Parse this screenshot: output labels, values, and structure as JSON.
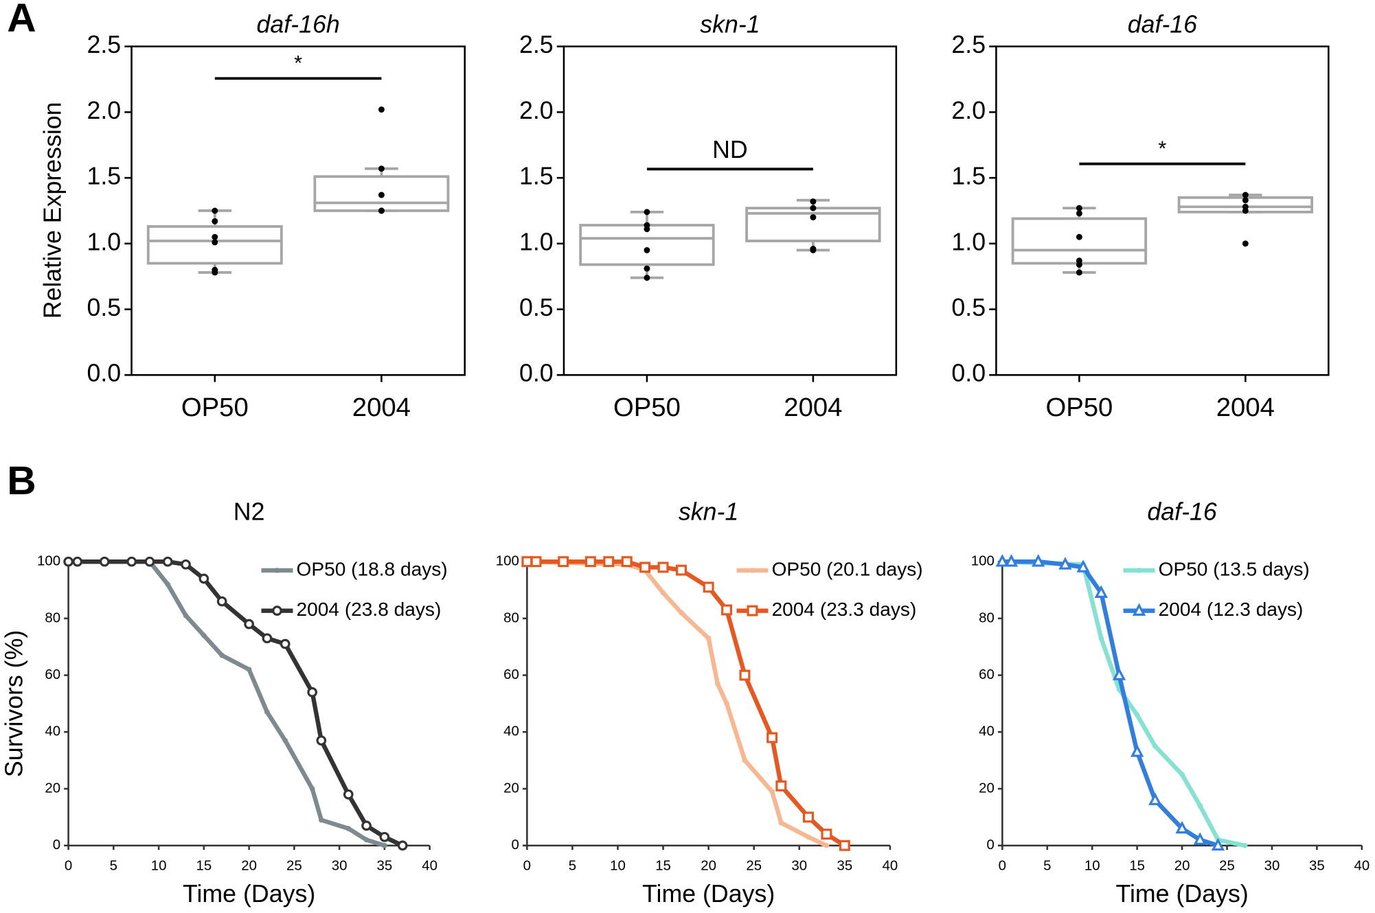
{
  "panel_labels": [
    "A",
    "B"
  ],
  "chart_data": [
    {
      "type": "box",
      "title": "daf-16h",
      "ylabel": "Relative Expression",
      "categories": [
        "OP50",
        "2004"
      ],
      "color": "#a6a6a6",
      "annotation": "*",
      "ylim": [
        0,
        2.5
      ],
      "yticks": [
        {
          "value": 0,
          "label": "0.0"
        },
        0.5,
        {
          "value": 1,
          "label": "1.0"
        },
        1.5,
        {
          "value": 2,
          "label": "2.0"
        },
        2.5
      ],
      "boxes": [
        {
          "whislo": 0.78,
          "q1": 0.85,
          "med": 1.02,
          "q3": 1.13,
          "whishi": 1.25,
          "points": [
            1.25,
            1.17,
            1.05,
            1.01,
            0.8,
            0.78
          ]
        },
        {
          "whislo": 1.25,
          "q1": 1.25,
          "med": 1.31,
          "q3": 1.51,
          "whishi": 1.57,
          "points": [
            2.02,
            1.57,
            1.37,
            1.25,
            1.25,
            1.25
          ]
        }
      ]
    },
    {
      "type": "box",
      "title": "skn-1",
      "categories": [
        "OP50",
        "2004"
      ],
      "color": "#a6a6a6",
      "annotation": "ND",
      "ylim": [
        0,
        2.5
      ],
      "yticks": [
        {
          "value": 0,
          "label": "0.0"
        },
        0.5,
        {
          "value": 1,
          "label": "1.0"
        },
        1.5,
        {
          "value": 2,
          "label": "2.0"
        },
        2.5
      ],
      "boxes": [
        {
          "whislo": 0.74,
          "q1": 0.84,
          "med": 1.04,
          "q3": 1.14,
          "whishi": 1.24,
          "points": [
            1.24,
            1.14,
            1.11,
            0.95,
            0.81,
            0.74
          ]
        },
        {
          "whislo": 0.95,
          "q1": 1.02,
          "med": 1.23,
          "q3": 1.27,
          "whishi": 1.33,
          "points": [
            1.32,
            1.27,
            1.2,
            0.96,
            0.95
          ]
        }
      ]
    },
    {
      "type": "box",
      "title": "daf-16",
      "categories": [
        "OP50",
        "2004"
      ],
      "color": "#a6a6a6",
      "annotation": "*",
      "ylim": [
        0,
        2.5
      ],
      "yticks": [
        {
          "value": 0,
          "label": "0.0"
        },
        0.5,
        {
          "value": 1,
          "label": "1.0"
        },
        1.5,
        {
          "value": 2,
          "label": "2.0"
        },
        2.5
      ],
      "boxes": [
        {
          "whislo": 0.78,
          "q1": 0.85,
          "med": 0.95,
          "q3": 1.19,
          "whishi": 1.27,
          "points": [
            1.27,
            1.23,
            1.05,
            0.87,
            0.84,
            0.78
          ]
        },
        {
          "whislo": 1.24,
          "q1": 1.24,
          "med": 1.28,
          "q3": 1.35,
          "whishi": 1.37,
          "points": [
            1.37,
            1.33,
            1.28,
            1.25,
            1.0
          ]
        }
      ]
    },
    {
      "type": "line",
      "title": "N2",
      "xlabel": "Time (Days)",
      "ylabel": "Survivors (%)",
      "legend": "upper right",
      "xlim": [
        0,
        40
      ],
      "xticks": [
        0,
        5,
        10,
        15,
        20,
        25,
        30,
        35,
        40
      ],
      "ylim": [
        0,
        100
      ],
      "yticks": [
        0,
        20,
        40,
        60,
        80,
        100
      ],
      "series": [
        {
          "name": "OP50 (18.8 days)",
          "color": "#7d8a8f",
          "marker": "dot",
          "x": [
            0,
            9,
            11,
            13,
            15,
            17,
            20,
            22,
            24,
            27,
            28,
            31,
            33,
            35
          ],
          "values": [
            100,
            100,
            92,
            81,
            74,
            67,
            62,
            47,
            37,
            20,
            9,
            6,
            2,
            0
          ]
        },
        {
          "name": "2004 (23.8 days)",
          "color": "#333333",
          "marker": "circle",
          "x": [
            0,
            1,
            4,
            7,
            9,
            11,
            13,
            15,
            17,
            20,
            22,
            24,
            27,
            28,
            31,
            33,
            35,
            37
          ],
          "values": [
            100,
            100,
            100,
            100,
            100,
            100,
            99,
            94,
            86,
            78,
            73,
            71,
            54,
            37,
            18,
            7,
            3,
            0
          ]
        }
      ]
    },
    {
      "type": "line",
      "title": "skn-1",
      "xlabel": "Time (Days)",
      "legend": "upper right",
      "xlim": [
        0,
        40
      ],
      "xticks": [
        0,
        5,
        10,
        15,
        20,
        25,
        30,
        35,
        40
      ],
      "ylim": [
        0,
        100
      ],
      "yticks": [
        0,
        20,
        40,
        60,
        80,
        100
      ],
      "series": [
        {
          "name": "OP50 (20.1 days)",
          "color": "#f7b891",
          "marker": "dot",
          "x": [
            0,
            11,
            13,
            15,
            17,
            20,
            21,
            22,
            24,
            27,
            28,
            31,
            33
          ],
          "values": [
            100,
            99,
            97,
            89,
            82,
            73,
            57,
            50,
            30,
            19,
            8,
            3,
            0
          ]
        },
        {
          "name": "2004 (23.3 days)",
          "color": "#e8571e",
          "marker": "square",
          "x": [
            0,
            1,
            4,
            7,
            9,
            11,
            13,
            15,
            17,
            20,
            22,
            24,
            27,
            28,
            31,
            33,
            35
          ],
          "values": [
            100,
            100,
            100,
            100,
            100,
            100,
            98,
            98,
            97,
            91,
            83,
            60,
            38,
            21,
            10,
            4,
            0
          ]
        }
      ]
    },
    {
      "type": "line",
      "title": "daf-16",
      "xlabel": "Time (Days)",
      "legend": "upper right",
      "xlim": [
        0,
        40
      ],
      "xticks": [
        0,
        5,
        10,
        15,
        20,
        25,
        30,
        35,
        40
      ],
      "ylim": [
        0,
        100
      ],
      "yticks": [
        0,
        20,
        40,
        60,
        80,
        100
      ],
      "series": [
        {
          "name": "OP50 (13.5 days)",
          "color": "#84e2d2",
          "marker": "dot",
          "x": [
            0,
            9,
            11,
            13,
            15,
            17,
            20,
            22,
            24,
            27
          ],
          "values": [
            100,
            99,
            73,
            55,
            46,
            35,
            25,
            14,
            2,
            0
          ]
        },
        {
          "name": "2004 (12.3 days)",
          "color": "#2f7ee0",
          "marker": "triangle",
          "x": [
            0,
            1,
            4,
            7,
            9,
            11,
            13,
            15,
            17,
            20,
            22,
            24
          ],
          "values": [
            100,
            100,
            100,
            99,
            98,
            89,
            60,
            33,
            16,
            6,
            2,
            0
          ]
        }
      ]
    }
  ]
}
